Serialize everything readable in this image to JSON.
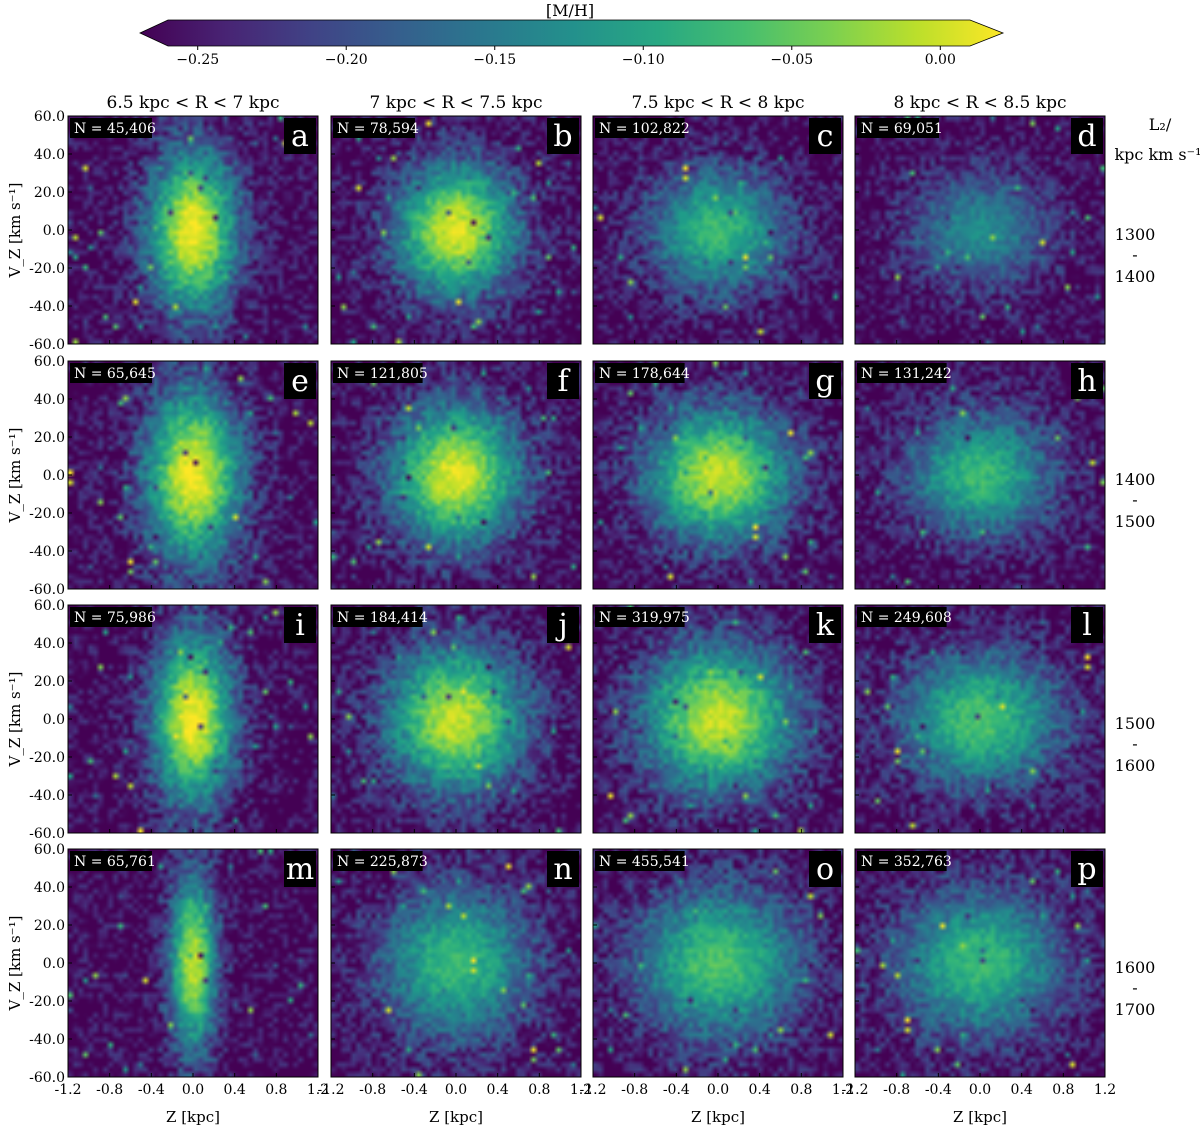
{
  "colorbar": {
    "label": "[M/H]",
    "ticks": [
      "−0.25",
      "−0.20",
      "−0.15",
      "−0.10",
      "−0.05",
      "0.00"
    ],
    "range": [
      -0.26,
      0.01
    ],
    "colors": [
      "#440154",
      "#3b528b",
      "#21918c",
      "#5ec962",
      "#fde725"
    ]
  },
  "column_titles": [
    "6.5 kpc < R < 7 kpc",
    "7 kpc < R < 7.5 kpc",
    "7.5 kpc < R < 8 kpc",
    "8 kpc < R < 8.5 kpc"
  ],
  "row_header": {
    "line1": "L₂/",
    "line2": "kpc km s⁻¹"
  },
  "row_labels": [
    {
      "top": "1300",
      "dash": "-",
      "bottom": "1400"
    },
    {
      "top": "1400",
      "dash": "-",
      "bottom": "1500"
    },
    {
      "top": "1500",
      "dash": "-",
      "bottom": "1600"
    },
    {
      "top": "1600",
      "dash": "-",
      "bottom": "1700"
    }
  ],
  "y_tick_labels": [
    "60.0",
    "40.0",
    "20.0",
    "0.0",
    "-20.0",
    "-40.0",
    "-60.0"
  ],
  "x_tick_labels": [
    "-1.2",
    "-0.8",
    "-0.4",
    "0.0",
    "0.4",
    "0.8",
    "1.2"
  ],
  "ylabel": "V_Z [km s⁻¹]",
  "xlabel": "Z [kpc]",
  "panels": [
    {
      "letter": "a",
      "n": "N = 45,406"
    },
    {
      "letter": "b",
      "n": "N = 78,594"
    },
    {
      "letter": "c",
      "n": "N = 102,822"
    },
    {
      "letter": "d",
      "n": "N = 69,051"
    },
    {
      "letter": "e",
      "n": "N = 65,645"
    },
    {
      "letter": "f",
      "n": "N = 121,805"
    },
    {
      "letter": "g",
      "n": "N = 178,644"
    },
    {
      "letter": "h",
      "n": "N = 131,242"
    },
    {
      "letter": "i",
      "n": "N = 75,986"
    },
    {
      "letter": "j",
      "n": "N = 184,414"
    },
    {
      "letter": "k",
      "n": "N = 319,975"
    },
    {
      "letter": "l",
      "n": "N = 249,608"
    },
    {
      "letter": "m",
      "n": "N = 65,761"
    },
    {
      "letter": "n",
      "n": "N = 225,873"
    },
    {
      "letter": "o",
      "n": "N = 455,541"
    },
    {
      "letter": "p",
      "n": "N = 352,763"
    }
  ],
  "chart_data": {
    "type": "heatmap",
    "description_units": {
      "x": "Z [kpc]",
      "y": "V_Z [km s^-1]",
      "color": "[M/H]"
    },
    "xlim": [
      -1.2,
      1.2
    ],
    "ylim": [
      -60,
      60
    ],
    "clim": [
      -0.25,
      0.0
    ],
    "colormap": "viridis",
    "panels": [
      {
        "letter": "a",
        "N": 45406,
        "peak_mh": 0.0,
        "background_mh": -0.25,
        "core_z_halfwidth": 0.55,
        "core_vz_halfwidth": 55
      },
      {
        "letter": "b",
        "N": 78594,
        "peak_mh": -0.01,
        "background_mh": -0.25,
        "core_z_halfwidth": 0.75,
        "core_vz_halfwidth": 45
      },
      {
        "letter": "c",
        "N": 102822,
        "peak_mh": -0.08,
        "background_mh": -0.25,
        "core_z_halfwidth": 0.85,
        "core_vz_halfwidth": 42
      },
      {
        "letter": "d",
        "N": 69051,
        "peak_mh": -0.13,
        "background_mh": -0.25,
        "core_z_halfwidth": 0.9,
        "core_vz_halfwidth": 38
      },
      {
        "letter": "e",
        "N": 65645,
        "peak_mh": 0.0,
        "background_mh": -0.25,
        "core_z_halfwidth": 0.6,
        "core_vz_halfwidth": 58
      },
      {
        "letter": "f",
        "N": 121805,
        "peak_mh": -0.01,
        "background_mh": -0.25,
        "core_z_halfwidth": 0.8,
        "core_vz_halfwidth": 48
      },
      {
        "letter": "g",
        "N": 178644,
        "peak_mh": -0.02,
        "background_mh": -0.25,
        "core_z_halfwidth": 0.9,
        "core_vz_halfwidth": 45
      },
      {
        "letter": "h",
        "N": 131242,
        "peak_mh": -0.08,
        "background_mh": -0.25,
        "core_z_halfwidth": 0.9,
        "core_vz_halfwidth": 42
      },
      {
        "letter": "i",
        "N": 75986,
        "peak_mh": 0.0,
        "background_mh": -0.25,
        "core_z_halfwidth": 0.5,
        "core_vz_halfwidth": 58
      },
      {
        "letter": "j",
        "N": 184414,
        "peak_mh": -0.02,
        "background_mh": -0.25,
        "core_z_halfwidth": 0.85,
        "core_vz_halfwidth": 50
      },
      {
        "letter": "k",
        "N": 319975,
        "peak_mh": -0.02,
        "background_mh": -0.25,
        "core_z_halfwidth": 0.95,
        "core_vz_halfwidth": 50
      },
      {
        "letter": "l",
        "N": 249608,
        "peak_mh": -0.07,
        "background_mh": -0.25,
        "core_z_halfwidth": 1.0,
        "core_vz_halfwidth": 46
      },
      {
        "letter": "m",
        "N": 65761,
        "peak_mh": -0.02,
        "background_mh": -0.25,
        "core_z_halfwidth": 0.3,
        "core_vz_halfwidth": 60
      },
      {
        "letter": "n",
        "N": 225873,
        "peak_mh": -0.08,
        "background_mh": -0.25,
        "core_z_halfwidth": 0.95,
        "core_vz_halfwidth": 52
      },
      {
        "letter": "o",
        "N": 455541,
        "peak_mh": -0.07,
        "background_mh": -0.25,
        "core_z_halfwidth": 1.05,
        "core_vz_halfwidth": 52
      },
      {
        "letter": "p",
        "N": 352763,
        "peak_mh": -0.08,
        "background_mh": -0.25,
        "core_z_halfwidth": 1.05,
        "core_vz_halfwidth": 50
      }
    ]
  }
}
